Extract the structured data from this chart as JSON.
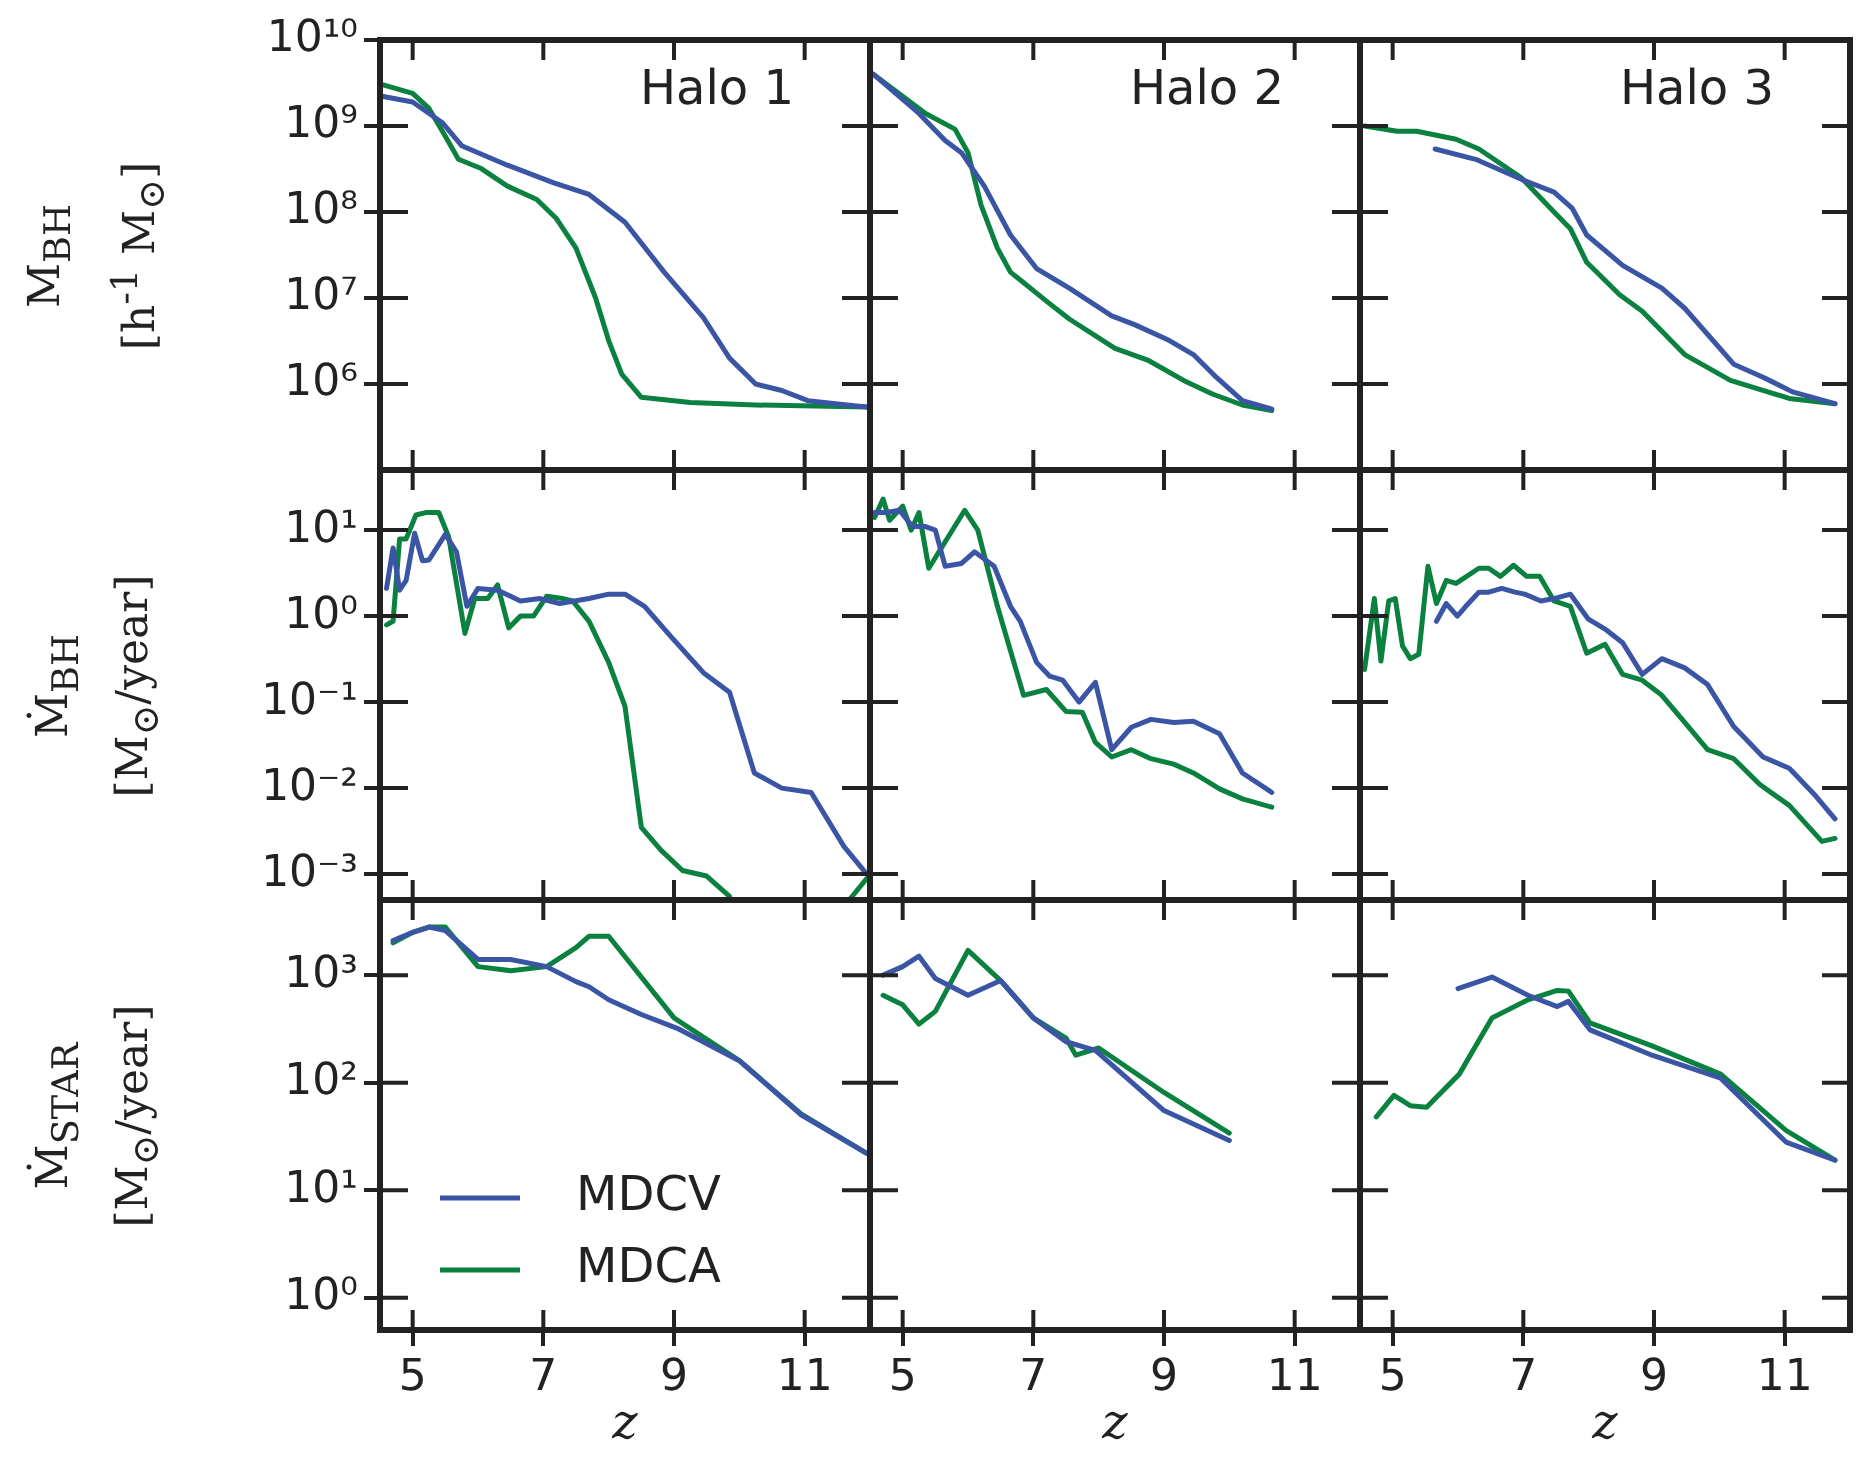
{
  "chart_data": [
    {
      "type": "line",
      "annotations": [
        "Halo 1"
      ],
      "ylabel": "M$_{BH}$\n[h$^{-1}$ M$_{⊙}$]",
      "xlim": [
        4.5,
        12
      ],
      "xticks": [
        {
          "value": 5,
          "label": null
        },
        {
          "value": 7,
          "label": null
        },
        {
          "value": 9,
          "label": null
        },
        {
          "value": 11,
          "label": null
        }
      ],
      "ylim": [
        100000,
        10000000000
      ],
      "yticks": [
        {
          "value": 1000000,
          "label": "10⁶"
        },
        {
          "value": 10000000,
          "label": "10⁷"
        },
        {
          "value": 100000000,
          "label": "10⁸"
        },
        {
          "value": 1000000000,
          "label": "10⁹"
        },
        {
          "value": 10000000000,
          "label": "10¹⁰"
        }
      ],
      "log": "y",
      "grid": false,
      "marker": "none",
      "tick_labels": "y",
      "series": [
        {
          "color": "#3b55a5",
          "x": [
            4.55,
            5.0,
            5.45,
            5.75,
            6.45,
            7.15,
            7.7,
            8.25,
            8.85,
            9.45,
            9.85,
            10.25,
            10.65,
            11.05,
            11.65,
            11.95
          ],
          "values": [
            2200000000.0,
            1900000000.0,
            1100000000.0,
            590000000.0,
            350000000.0,
            220000000.0,
            160000000.0,
            76000000.0,
            20000000.0,
            5900000.0,
            2000000.0,
            1000000.0,
            840000.0,
            640000.0,
            570000.0,
            540000.0
          ]
        },
        {
          "color": "#0b8140",
          "x": [
            4.55,
            5.0,
            5.25,
            5.5,
            5.7,
            6.05,
            6.45,
            6.9,
            7.2,
            7.5,
            7.8,
            8.0,
            8.2,
            8.5,
            9.25,
            10.25,
            11.95
          ],
          "values": [
            3000000000.0,
            2400000000.0,
            1600000000.0,
            760000000.0,
            410000000.0,
            320000000.0,
            200000000.0,
            140000000.0,
            84000000.0,
            38000000.0,
            10000000.0,
            3200000.0,
            1300000.0,
            700000.0,
            610000.0,
            570000.0,
            540000.0
          ]
        }
      ]
    },
    {
      "type": "line",
      "annotations": [
        "Halo 2"
      ],
      "xlim": [
        4.5,
        12
      ],
      "xticks": [
        {
          "value": 5,
          "label": null
        },
        {
          "value": 7,
          "label": null
        },
        {
          "value": 9,
          "label": null
        },
        {
          "value": 11,
          "label": null
        }
      ],
      "ylim": [
        100000,
        10000000000
      ],
      "yticks": [
        {
          "value": 1000000,
          "label": null
        },
        {
          "value": 10000000,
          "label": null
        },
        {
          "value": 100000000,
          "label": null
        },
        {
          "value": 1000000000,
          "label": null
        },
        {
          "value": 10000000000,
          "label": null
        }
      ],
      "log": "y",
      "grid": false,
      "marker": "none",
      "tick_labels": false,
      "series": [
        {
          "color": "#3b55a5",
          "x": [
            4.55,
            5.25,
            5.65,
            5.9,
            6.25,
            6.65,
            7.05,
            7.55,
            8.2,
            8.55,
            9.05,
            9.45,
            9.8,
            10.2,
            10.65
          ],
          "values": [
            4000000000.0,
            1400000000.0,
            680000000.0,
            490000000.0,
            200000000.0,
            54000000.0,
            22000000.0,
            13000000.0,
            6200000.0,
            4900000.0,
            3300000.0,
            2200000.0,
            1200000.0,
            640000.0,
            510000.0
          ]
        },
        {
          "color": "#0b8140",
          "x": [
            4.55,
            5.35,
            5.8,
            6.0,
            6.2,
            6.45,
            6.65,
            7.2,
            7.55,
            8.25,
            8.75,
            9.3,
            9.75,
            10.2,
            10.65
          ],
          "values": [
            4000000000.0,
            1400000000.0,
            920000000.0,
            490000000.0,
            120000000.0,
            38000000.0,
            20000000.0,
            9200000.0,
            5700000.0,
            2600000.0,
            1900000.0,
            1100000.0,
            760000.0,
            570000.0,
            490000.0
          ]
        }
      ]
    },
    {
      "type": "line",
      "annotations": [
        "Halo 3"
      ],
      "xlim": [
        4.5,
        12
      ],
      "xticks": [
        {
          "value": 5,
          "label": null
        },
        {
          "value": 7,
          "label": null
        },
        {
          "value": 9,
          "label": null
        },
        {
          "value": 11,
          "label": null
        }
      ],
      "ylim": [
        100000,
        10000000000
      ],
      "yticks": [
        {
          "value": 1000000,
          "label": null
        },
        {
          "value": 10000000,
          "label": null
        },
        {
          "value": 100000000,
          "label": null
        },
        {
          "value": 1000000000,
          "label": null
        },
        {
          "value": 10000000000,
          "label": null
        }
      ],
      "log": "y",
      "grid": false,
      "marker": "none",
      "tick_labels": false,
      "series": [
        {
          "color": "#3b55a5",
          "x": [
            5.65,
            6.27,
            6.97,
            7.47,
            7.75,
            7.97,
            8.52,
            9.12,
            9.47,
            10.22,
            10.67,
            11.12,
            11.77
          ],
          "values": [
            540000000.0,
            410000000.0,
            240000000.0,
            170000000.0,
            110000000.0,
            54000000.0,
            24000000.0,
            13000000.0,
            7600000.0,
            1700000.0,
            1200000.0,
            810000.0,
            590000.0
          ]
        },
        {
          "color": "#0b8140",
          "x": [
            4.57,
            5.07,
            5.37,
            5.97,
            6.32,
            6.97,
            7.47,
            7.72,
            7.97,
            8.47,
            8.82,
            9.47,
            10.17,
            11.07,
            11.77
          ],
          "values": [
            1000000000.0,
            870000000.0,
            870000000.0,
            700000000.0,
            540000000.0,
            250000000.0,
            100000000.0,
            64000000.0,
            26000000.0,
            11000000.0,
            7000000.0,
            2200000.0,
            1100000.0,
            680000.0,
            590000.0
          ]
        }
      ]
    },
    {
      "type": "line",
      "ylabel": "Ṁ$_{BH}$\n[M$_{⊙}$/year]",
      "xlim": [
        4.5,
        12
      ],
      "xticks": [
        {
          "value": 5,
          "label": null
        },
        {
          "value": 7,
          "label": null
        },
        {
          "value": 9,
          "label": null
        },
        {
          "value": 11,
          "label": null
        }
      ],
      "ylim": [
        0.0005,
        50
      ],
      "yticks": [
        {
          "value": 0.001,
          "label": "10⁻³"
        },
        {
          "value": 0.01,
          "label": "10⁻²"
        },
        {
          "value": 0.1,
          "label": "10⁻¹"
        },
        {
          "value": 1,
          "label": "10⁰"
        },
        {
          "value": 10,
          "label": "10¹"
        }
      ],
      "log": "y",
      "grid": false,
      "marker": "none",
      "tick_labels": "y",
      "series": [
        {
          "color": "#3b55a5",
          "x": [
            4.6,
            4.7,
            4.8,
            4.9,
            5.03,
            5.15,
            5.25,
            5.5,
            5.67,
            5.83,
            6.0,
            6.3,
            6.65,
            6.95,
            7.25,
            7.7,
            8.0,
            8.25,
            8.55,
            8.95,
            9.45,
            9.85,
            10.23,
            10.65,
            11.1,
            11.6,
            11.95
          ],
          "values": [
            2.1,
            6.2,
            2.0,
            2.6,
            9.2,
            4.4,
            4.5,
            8.9,
            5.6,
            1.3,
            2.1,
            2.0,
            1.5,
            1.6,
            1.4,
            1.6,
            1.8,
            1.8,
            1.3,
            0.58,
            0.22,
            0.13,
            0.015,
            0.01,
            0.0089,
            0.0021,
            0.001
          ]
        },
        {
          "color": "#0b8140",
          "x": [
            4.6,
            4.7,
            4.8,
            4.9,
            5.05,
            5.2,
            5.4,
            5.55,
            5.8,
            5.95,
            6.15,
            6.3,
            6.47,
            6.65,
            6.85,
            7.05,
            7.3,
            7.45,
            7.7,
            8.0,
            8.25,
            8.5,
            8.8,
            9.13,
            9.5,
            9.85,
            10.8,
            11.7,
            11.95
          ],
          "values": [
            0.79,
            0.87,
            7.9,
            7.9,
            15,
            16,
            16,
            8.4,
            0.63,
            1.6,
            1.6,
            2.3,
            0.73,
            1.0,
            1.0,
            1.7,
            1.6,
            1.5,
            0.87,
            0.29,
            0.089,
            0.0035,
            0.0019,
            0.0011,
            0.00095,
            0.00055,
            null,
            0.00052,
            0.00089
          ]
        }
      ]
    },
    {
      "type": "line",
      "xlim": [
        4.5,
        12
      ],
      "xticks": [
        {
          "value": 5,
          "label": null
        },
        {
          "value": 7,
          "label": null
        },
        {
          "value": 9,
          "label": null
        },
        {
          "value": 11,
          "label": null
        }
      ],
      "ylim": [
        0.0005,
        50
      ],
      "yticks": [
        {
          "value": 0.001,
          "label": null
        },
        {
          "value": 0.01,
          "label": null
        },
        {
          "value": 0.1,
          "label": null
        },
        {
          "value": 1,
          "label": null
        },
        {
          "value": 10,
          "label": null
        }
      ],
      "log": "y",
      "grid": false,
      "marker": "none",
      "tick_labels": false,
      "series": [
        {
          "color": "#3b55a5",
          "x": [
            4.57,
            4.75,
            4.95,
            5.15,
            5.35,
            5.5,
            5.65,
            5.9,
            6.1,
            6.4,
            6.65,
            6.8,
            7.05,
            7.25,
            7.45,
            7.7,
            7.95,
            8.2,
            8.5,
            8.8,
            9.15,
            9.45,
            9.85,
            10.2,
            10.65
          ],
          "values": [
            16,
            16,
            17,
            11,
            11,
            10,
            3.8,
            4.1,
            5.6,
            3.8,
            1.3,
            0.87,
            0.29,
            0.2,
            0.18,
            0.1,
            0.17,
            0.028,
            0.051,
            0.063,
            0.058,
            0.06,
            0.043,
            0.015,
            0.0089
          ]
        },
        {
          "color": "#0b8140",
          "x": [
            4.57,
            4.7,
            4.8,
            5.0,
            5.13,
            5.25,
            5.4,
            5.95,
            6.15,
            6.45,
            6.85,
            7.2,
            7.5,
            7.75,
            7.95,
            8.2,
            8.5,
            8.8,
            9.15,
            9.45,
            9.85,
            10.2,
            10.65
          ],
          "values": [
            14,
            23,
            13,
            19,
            10,
            16,
            3.6,
            17,
            10,
            1.3,
            0.12,
            0.14,
            0.078,
            0.076,
            0.034,
            0.023,
            0.028,
            0.022,
            0.019,
            0.015,
            0.0098,
            0.0075,
            0.006
          ]
        }
      ]
    },
    {
      "type": "line",
      "xlim": [
        4.5,
        12
      ],
      "xticks": [
        {
          "value": 5,
          "label": null
        },
        {
          "value": 7,
          "label": null
        },
        {
          "value": 9,
          "label": null
        },
        {
          "value": 11,
          "label": null
        }
      ],
      "ylim": [
        0.0005,
        50
      ],
      "yticks": [
        {
          "value": 0.001,
          "label": null
        },
        {
          "value": 0.01,
          "label": null
        },
        {
          "value": 0.1,
          "label": null
        },
        {
          "value": 1,
          "label": null
        },
        {
          "value": 10,
          "label": null
        }
      ],
      "log": "y",
      "grid": false,
      "marker": "none",
      "tick_labels": false,
      "series": [
        {
          "color": "#3b55a5",
          "x": [
            5.67,
            5.82,
            5.99,
            6.12,
            6.32,
            6.47,
            6.67,
            6.87,
            7.02,
            7.27,
            7.47,
            7.72,
            7.99,
            8.27,
            8.52,
            8.82,
            9.12,
            9.47,
            9.82,
            10.22,
            10.67,
            11.07,
            11.47,
            11.77
          ],
          "values": [
            0.87,
            1.4,
            1.0,
            1.3,
            1.9,
            1.9,
            2.1,
            1.9,
            1.8,
            1.5,
            1.6,
            1.8,
            0.93,
            0.69,
            0.49,
            0.21,
            0.32,
            0.25,
            0.16,
            0.052,
            0.023,
            0.017,
            0.0082,
            0.0044
          ]
        },
        {
          "color": "#0b8140",
          "x": [
            4.57,
            4.72,
            4.82,
            4.94,
            5.04,
            5.15,
            5.27,
            5.4,
            5.54,
            5.67,
            5.82,
            5.97,
            6.32,
            6.47,
            6.65,
            6.85,
            7.05,
            7.25,
            7.47,
            7.72,
            7.97,
            8.25,
            8.52,
            8.82,
            9.12,
            9.47,
            9.82,
            10.22,
            10.62,
            11.07,
            11.57,
            11.77
          ],
          "values": [
            0.24,
            1.6,
            0.3,
            1.5,
            1.6,
            0.45,
            0.32,
            0.36,
            3.8,
            1.4,
            2.6,
            2.4,
            3.6,
            3.6,
            2.9,
            3.9,
            2.9,
            2.9,
            1.5,
            1.3,
            0.37,
            0.47,
            0.21,
            0.18,
            0.12,
            0.058,
            0.028,
            0.022,
            0.011,
            0.0063,
            0.0024,
            0.0026
          ]
        }
      ]
    },
    {
      "type": "line",
      "ylabel": "Ṁ$_{STAR}$\n[M$_{⊙}$/year]",
      "xlabel": "z",
      "xlim": [
        4.5,
        12
      ],
      "xticks": [
        5,
        7,
        9,
        11
      ],
      "ylim": [
        0.5,
        5000
      ],
      "yticks": [
        {
          "value": 1,
          "label": "10⁰"
        },
        {
          "value": 10,
          "label": "10¹"
        },
        {
          "value": 100,
          "label": "10²"
        },
        {
          "value": 1000,
          "label": "10³"
        }
      ],
      "log": "y",
      "grid": false,
      "marker": "none",
      "legend": "bottom left",
      "series": [
        {
          "name": "MDCV",
          "color": "#3b55a5",
          "x": [
            4.7,
            5.0,
            5.25,
            5.5,
            6.0,
            6.5,
            7.05,
            7.5,
            7.7,
            8.0,
            8.5,
            9.05,
            10.0,
            10.95,
            11.95
          ],
          "values": [
            2100,
            2500,
            2800,
            2600,
            1400,
            1400,
            1200,
            870,
            780,
            590,
            430,
            320,
            160,
            50,
            22
          ]
        },
        {
          "name": "MDCA",
          "color": "#0b8140",
          "x": [
            4.7,
            5.0,
            5.25,
            5.5,
            6.0,
            6.5,
            7.05,
            7.5,
            7.7,
            8.0,
            9.0,
            10.0,
            10.95,
            11.95
          ],
          "values": [
            2000,
            2500,
            2800,
            2800,
            1200,
            1100,
            1200,
            1800,
            2300,
            2300,
            400,
            160,
            51,
            22
          ]
        }
      ]
    },
    {
      "type": "line",
      "xlabel": "z",
      "xlim": [
        4.5,
        12
      ],
      "xticks": [
        5,
        7,
        9,
        11
      ],
      "ylim": [
        0.5,
        5000
      ],
      "yticks": [
        {
          "value": 1,
          "label": null
        },
        {
          "value": 10,
          "label": null
        },
        {
          "value": 100,
          "label": null
        },
        {
          "value": 1000,
          "label": null
        }
      ],
      "log": "y",
      "grid": false,
      "marker": "none",
      "tick_labels": "x",
      "series": [
        {
          "color": "#3b55a5",
          "x": [
            4.7,
            5.0,
            5.25,
            5.5,
            6.0,
            6.5,
            7.0,
            7.5,
            7.95,
            9.0,
            10.0
          ],
          "values": [
            1000,
            1200,
            1500,
            930,
            650,
            890,
            400,
            240,
            200,
            55,
            29
          ]
        },
        {
          "color": "#0b8140",
          "x": [
            4.7,
            5.0,
            5.25,
            5.5,
            6.0,
            6.5,
            7.0,
            7.5,
            7.65,
            8.0,
            9.0,
            10.0
          ],
          "values": [
            650,
            530,
            350,
            460,
            1700,
            890,
            400,
            260,
            180,
            210,
            81,
            34
          ]
        }
      ]
    },
    {
      "type": "line",
      "xlabel": "z",
      "xlim": [
        4.5,
        12
      ],
      "xticks": [
        5,
        7,
        9,
        11
      ],
      "ylim": [
        0.5,
        5000
      ],
      "yticks": [
        {
          "value": 1,
          "label": null
        },
        {
          "value": 10,
          "label": null
        },
        {
          "value": 100,
          "label": null
        },
        {
          "value": 1000,
          "label": null
        }
      ],
      "log": "y",
      "grid": false,
      "marker": "none",
      "tick_labels": "x",
      "series": [
        {
          "color": "#3b55a5",
          "x": [
            6.0,
            6.52,
            7.07,
            7.52,
            7.69,
            8.02,
            8.97,
            10.02,
            11.02,
            11.77
          ],
          "values": [
            750,
            960,
            650,
            510,
            570,
            310,
            180,
            110,
            28,
            19
          ]
        },
        {
          "color": "#0b8140",
          "x": [
            4.75,
            5.02,
            5.27,
            5.52,
            6.02,
            6.52,
            7.07,
            7.52,
            7.69,
            8.02,
            8.97,
            10.02,
            11.02,
            11.77
          ],
          "values": [
            48,
            76,
            61,
            59,
            120,
            400,
            590,
            720,
            710,
            360,
            220,
            120,
            36,
            19
          ]
        }
      ]
    }
  ]
}
